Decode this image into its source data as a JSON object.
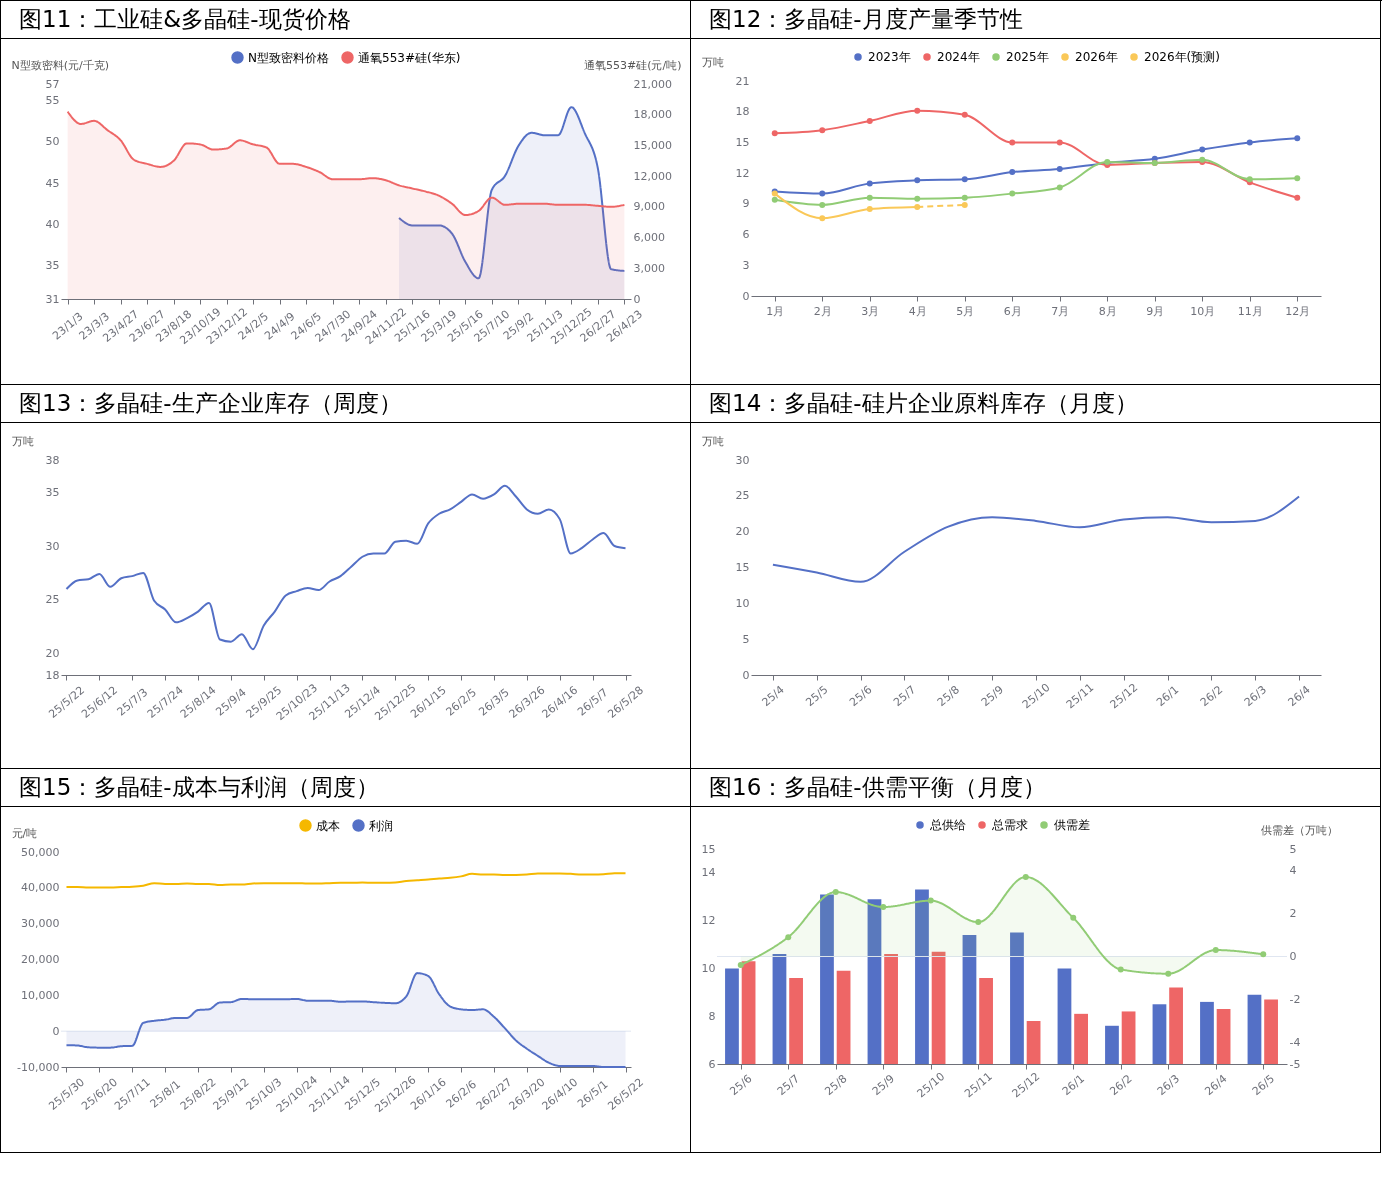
{
  "chart_data": [
    {
      "type": "area",
      "title": "图11：工业硅&多晶硅-现货价格",
      "ylabel": "N型致密料(元/千克)",
      "y2label": "通氧553#硅(元/吨)",
      "legend": "top",
      "categories": [
        "23/1/3",
        null,
        "23/3/3",
        null,
        "23/4/27",
        null,
        "23/6/27",
        null,
        "23/8/18",
        null,
        "23/10/19",
        null,
        "23/12/12",
        null,
        "24/2/5",
        null,
        "24/4/9",
        null,
        "24/6/5",
        null,
        "24/7/30",
        null,
        "24/9/24",
        null,
        "24/11/22",
        null,
        "25/1/16",
        null,
        "25/3/19",
        null,
        "25/5/16",
        null,
        "25/7/10",
        null,
        "25/9/2",
        null,
        "25/11/3",
        null,
        "25/12/25",
        null,
        "26/2/27",
        null,
        "26/4/23"
      ],
      "series": [
        {
          "name": "N型致密料价格",
          "color": "#5470c6",
          "values": [
            null,
            null,
            null,
            null,
            null,
            null,
            null,
            null,
            null,
            null,
            null,
            null,
            null,
            null,
            null,
            null,
            null,
            null,
            null,
            null,
            null,
            null,
            null,
            null,
            null,
            40.8,
            39.9,
            39.9,
            39.9,
            38.9,
            35.5,
            33.5,
            44.2,
            45.9,
            49.5,
            51.1,
            50.8,
            50.8,
            54.2,
            51.1,
            46.8,
            34.6,
            34.4
          ]
        },
        {
          "name": "通氧553#硅(华东)",
          "color": "#ee6666",
          "axis": "y2",
          "values": [
            18300,
            17100,
            17400,
            16500,
            15500,
            13600,
            13200,
            12900,
            13500,
            15200,
            15100,
            14600,
            14700,
            15500,
            15100,
            14800,
            13200,
            13200,
            12900,
            12400,
            11700,
            11700,
            11700,
            11800,
            11600,
            11100,
            10800,
            10500,
            10100,
            9300,
            8200,
            8600,
            9900,
            9200,
            9300,
            9300,
            9300,
            9200,
            9200,
            9200,
            9100,
            9000,
            9200
          ]
        }
      ],
      "ylim": [
        31,
        57
      ],
      "yticks": [
        31,
        35,
        40,
        45,
        50,
        55,
        57
      ],
      "y2lim": [
        0,
        21000
      ],
      "y2ticks": [
        0,
        {
          "value": 3000,
          "label": "3,000"
        },
        {
          "value": 6000,
          "label": "6,000"
        },
        {
          "value": 9000,
          "label": "9,000"
        },
        {
          "value": 12000,
          "label": "12,000"
        },
        {
          "value": 15000,
          "label": "15,000"
        },
        {
          "value": 18000,
          "label": "18,000"
        },
        {
          "value": 21000,
          "label": "21,000"
        }
      ]
    },
    {
      "type": "line",
      "title": "图12：多晶硅-月度产量季节性",
      "ylabel": "万吨",
      "legend": "top",
      "marker": "circle",
      "categories": [
        "1月",
        "2月",
        "3月",
        "4月",
        "5月",
        "6月",
        "7月",
        "8月",
        "9月",
        "10月",
        "11月",
        "12月"
      ],
      "series": [
        {
          "name": "2023年",
          "color": "#5470c6",
          "values": [
            10.2,
            10.0,
            11.0,
            11.3,
            11.4,
            12.1,
            12.4,
            13.0,
            13.4,
            14.3,
            15.0,
            15.4
          ]
        },
        {
          "name": "2024年",
          "color": "#ee6666",
          "values": [
            15.9,
            16.2,
            17.1,
            18.1,
            17.7,
            15.0,
            15.0,
            12.8,
            13.0,
            13.1,
            11.1,
            9.6
          ]
        },
        {
          "name": "2025年",
          "color": "#91cc75",
          "values": [
            9.4,
            8.9,
            9.6,
            9.5,
            9.6,
            10.0,
            10.6,
            13.1,
            13.0,
            13.3,
            11.4,
            11.5
          ]
        },
        {
          "name": "2026年",
          "color": "#fac858",
          "values": [
            10.0,
            7.6,
            8.5,
            8.7,
            null,
            null,
            null,
            null,
            null,
            null,
            null,
            null
          ]
        },
        {
          "name": "2026年(预测)",
          "color": "#fac858",
          "line_style": "dashed",
          "values": [
            null,
            null,
            null,
            8.7,
            8.9,
            null,
            null,
            null,
            null,
            null,
            null,
            null
          ]
        }
      ],
      "ylim": [
        0,
        21
      ],
      "yticks": [
        0,
        3,
        6,
        9,
        12,
        15,
        18,
        21
      ]
    },
    {
      "type": "line",
      "title": "图13：多晶硅-生产企业库存（周度）",
      "ylabel": "万吨",
      "categories": [
        "25/5/22",
        null,
        null,
        "25/6/12",
        null,
        null,
        "25/7/3",
        null,
        null,
        "25/7/24",
        null,
        null,
        "25/8/14",
        null,
        null,
        "25/9/4",
        null,
        null,
        "25/9/25",
        null,
        null,
        "25/10/23",
        null,
        null,
        "25/11/13",
        null,
        null,
        "25/12/4",
        null,
        null,
        "25/12/25",
        null,
        null,
        "26/1/15",
        null,
        null,
        "26/2/5",
        null,
        null,
        "26/3/5",
        null,
        null,
        "26/3/26",
        null,
        null,
        "26/4/16",
        null,
        null,
        "26/5/7",
        null,
        null,
        "26/5/28"
      ],
      "series": [
        {
          "color": "#5470c6",
          "values": [
            26.0,
            26.8,
            26.9,
            27.4,
            26.2,
            27.0,
            27.2,
            27.5,
            24.9,
            24.1,
            22.9,
            23.3,
            23.9,
            24.7,
            21.3,
            21.1,
            21.8,
            20.4,
            22.6,
            23.9,
            25.4,
            25.8,
            26.1,
            25.9,
            26.7,
            27.2,
            28.1,
            29.0,
            29.3,
            29.3,
            30.4,
            30.5,
            30.2,
            32.1,
            33.0,
            33.4,
            34.1,
            34.8,
            34.4,
            34.8,
            35.6,
            34.6,
            33.4,
            33.0,
            33.4,
            32.5,
            29.3,
            29.8,
            30.6,
            31.2,
            30.0,
            29.8
          ]
        }
      ],
      "ylim": [
        18,
        38
      ],
      "yticks": [
        18,
        20,
        25,
        30,
        35,
        38
      ]
    },
    {
      "type": "line",
      "title": "图14：多晶硅-硅片企业原料库存（月度）",
      "ylabel": "万吨",
      "categories": [
        "25/4",
        "25/5",
        "25/6",
        "25/7",
        "25/8",
        "25/9",
        "25/10",
        "25/11",
        "25/12",
        "26/1",
        "26/2",
        "26/3",
        "26/4"
      ],
      "series": [
        {
          "color": "#5470c6",
          "values": [
            15.4,
            14.3,
            13.0,
            17.2,
            20.7,
            22.0,
            21.5,
            20.6,
            21.7,
            22.0,
            21.3,
            21.5,
            24.9
          ]
        }
      ],
      "ylim": [
        0,
        30
      ],
      "yticks": [
        0,
        5,
        10,
        15,
        20,
        25,
        30
      ]
    },
    {
      "type": "line",
      "title": "图15：多晶硅-成本与利润（周度）",
      "ylabel": "元/吨",
      "legend": "top",
      "categories": [
        "25/5/30",
        null,
        null,
        "25/6/20",
        null,
        null,
        "25/7/11",
        null,
        null,
        "25/8/1",
        null,
        null,
        "25/8/22",
        null,
        null,
        "25/9/12",
        null,
        null,
        "25/10/3",
        null,
        null,
        "25/10/24",
        null,
        null,
        "25/11/14",
        null,
        null,
        "25/12/5",
        null,
        null,
        "25/12/26",
        null,
        null,
        "26/1/16",
        null,
        null,
        "26/2/6",
        null,
        null,
        "26/2/27",
        null,
        null,
        "26/3/20",
        null,
        null,
        "26/4/10",
        null,
        null,
        "26/5/1",
        null,
        null,
        "26/5/22"
      ],
      "series": [
        {
          "name": "成本",
          "color": "#f5b800",
          "values": [
            40200,
            40200,
            40100,
            40100,
            40100,
            40200,
            40300,
            40600,
            41300,
            41100,
            41100,
            41200,
            41100,
            41100,
            40800,
            40900,
            40900,
            41200,
            41300,
            41300,
            41300,
            41300,
            41200,
            41200,
            41300,
            41400,
            41400,
            41500,
            41400,
            41400,
            41500,
            41900,
            42100,
            42300,
            42600,
            42800,
            43200,
            43900,
            43700,
            43700,
            43600,
            43600,
            43700,
            44000,
            44000,
            44000,
            43900,
            43700,
            43700,
            43800,
            44100,
            44100
          ]
        },
        {
          "name": "利润",
          "color": "#5470c6",
          "type": "area",
          "values": [
            -3900,
            -4000,
            -4500,
            -4600,
            -4600,
            -4200,
            -4100,
            2300,
            2900,
            3200,
            3700,
            3700,
            5900,
            6100,
            8000,
            8100,
            9000,
            8900,
            8900,
            8900,
            8900,
            9000,
            8500,
            8500,
            8500,
            8200,
            8300,
            8300,
            8100,
            7900,
            7800,
            9700,
            16200,
            15400,
            10300,
            6900,
            6100,
            5900,
            6100,
            4000,
            800,
            -2600,
            -4900,
            -6900,
            -8800,
            -9700,
            -9700,
            -9700,
            -9700,
            -10000,
            -10000,
            -10000
          ]
        }
      ],
      "ylim": [
        -10000,
        50000
      ],
      "yticks": [
        {
          "value": -10000,
          "label": "-10,000"
        },
        0,
        {
          "value": 10000,
          "label": "10,000"
        },
        {
          "value": 20000,
          "label": "20,000"
        },
        {
          "value": 30000,
          "label": "30,000"
        },
        {
          "value": 40000,
          "label": "40,000"
        },
        {
          "value": 50000,
          "label": "50,000"
        }
      ],
      "ref_lines": [
        {
          "axis": "y",
          "value": 0,
          "color": "#e0e6f1"
        }
      ]
    },
    {
      "type": "bar",
      "title": "图16：多晶硅-供需平衡（月度）",
      "y2label": "供需差（万吨）",
      "legend": "top",
      "marker": "circle",
      "categories": [
        "25/6",
        "25/7",
        "25/8",
        "25/9",
        "25/10",
        "25/11",
        "25/12",
        "26/1",
        "26/2",
        "26/3",
        "26/4",
        "26/5"
      ],
      "series": [
        {
          "name": "总供给",
          "color": "#5470c6",
          "values": [
            10.0,
            10.6,
            13.1,
            12.9,
            13.3,
            11.4,
            11.5,
            10.0,
            7.6,
            8.5,
            8.6,
            8.9
          ]
        },
        {
          "name": "总需求",
          "color": "#ee6666",
          "values": [
            10.3,
            9.6,
            9.9,
            10.6,
            10.7,
            9.6,
            7.8,
            8.1,
            8.2,
            9.2,
            8.3,
            8.7
          ]
        },
        {
          "name": "供需差",
          "color": "#91cc75",
          "type": "area",
          "axis": "y2",
          "values": [
            -0.4,
            0.9,
            3.0,
            2.3,
            2.6,
            1.6,
            3.7,
            1.8,
            -0.6,
            -0.8,
            0.3,
            0.1
          ]
        }
      ],
      "ylim": [
        6,
        15
      ],
      "yticks": [
        6,
        8,
        10,
        12,
        14,
        15
      ],
      "y2lim": [
        -5,
        5
      ],
      "y2ticks": [
        -5,
        -4,
        -2,
        0,
        2,
        4,
        5
      ],
      "ref_lines": [
        {
          "axis": "y2",
          "value": 0,
          "color": "#e0e6f1"
        }
      ]
    }
  ]
}
